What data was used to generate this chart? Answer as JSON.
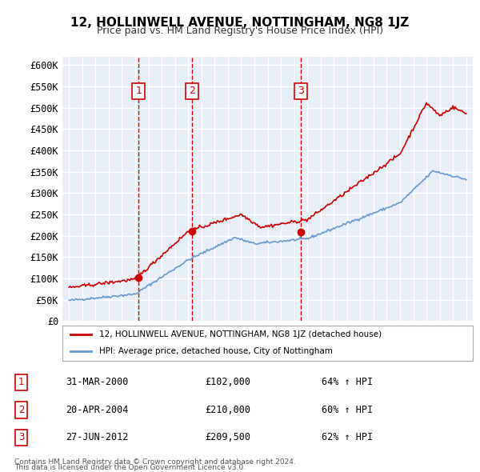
{
  "title": "12, HOLLINWELL AVENUE, NOTTINGHAM, NG8 1JZ",
  "subtitle": "Price paid vs. HM Land Registry's House Price Index (HPI)",
  "legend_line1": "12, HOLLINWELL AVENUE, NOTTINGHAM, NG8 1JZ (detached house)",
  "legend_line2": "HPI: Average price, detached house, City of Nottingham",
  "footnote1": "Contains HM Land Registry data © Crown copyright and database right 2024.",
  "footnote2": "This data is licensed under the Open Government Licence v3.0.",
  "sales": [
    {
      "label": "1",
      "date": "31-MAR-2000",
      "price": 102000,
      "pct": "64%",
      "dir": "↑"
    },
    {
      "label": "2",
      "date": "20-APR-2004",
      "price": 210000,
      "pct": "60%",
      "dir": "↑"
    },
    {
      "label": "3",
      "date": "27-JUN-2012",
      "price": 209500,
      "pct": "62%",
      "dir": "↑"
    }
  ],
  "sale_years": [
    2000.25,
    2004.3,
    2012.5
  ],
  "sale_prices": [
    102000,
    210000,
    209500
  ],
  "hpi_color": "#6699cc",
  "price_color": "#cc0000",
  "bg_color": "#e8eef8",
  "grid_color": "#ffffff",
  "ylim": [
    0,
    620000
  ],
  "yticks": [
    0,
    50000,
    100000,
    150000,
    200000,
    250000,
    300000,
    350000,
    400000,
    450000,
    500000,
    550000,
    600000
  ]
}
